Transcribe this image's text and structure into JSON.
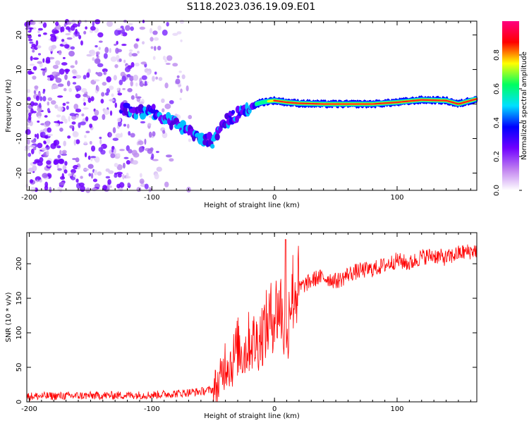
{
  "title": "S118.2023.036.19.09.E01",
  "chart_data": [
    {
      "type": "heatmap",
      "title": "",
      "xlabel": "Height of straight line (km)",
      "ylabel": "Frequency (Hz)",
      "xlim": [
        -202,
        165
      ],
      "ylim": [
        -25,
        24
      ],
      "xticks": [
        -200,
        -100,
        0,
        100
      ],
      "yticks": [
        -20,
        -10,
        0,
        10,
        20
      ],
      "colorbar": {
        "label": "Normalized spectral amplitude",
        "range": [
          0,
          1
        ],
        "ticks": [
          "0.0",
          "0.2",
          "0.4",
          "0.6",
          "0.8"
        ],
        "colors": [
          "#ffffff",
          "#c080f0",
          "#7000ff",
          "#0000ff",
          "#00e0ff",
          "#00ff60",
          "#ffff00",
          "#ff0000",
          "#ff0080"
        ]
      },
      "ridge": {
        "x": [
          -125,
          -110,
          -100,
          -90,
          -80,
          -70,
          -60,
          -50,
          -45,
          -40,
          -35,
          -30,
          -25,
          -20,
          -15,
          -10,
          -5,
          0,
          10,
          20,
          40,
          60,
          80,
          100,
          120,
          140,
          150,
          165
        ],
        "freq": [
          -1.5,
          -2.5,
          -2.0,
          -4.0,
          -6.0,
          -8.0,
          -10.0,
          -11.0,
          -7.0,
          -5.0,
          -4.0,
          -3.0,
          -2.0,
          -1.0,
          0.0,
          0.5,
          0.8,
          1.0,
          0.5,
          0.2,
          0.0,
          0.0,
          0.0,
          0.5,
          1.2,
          1.0,
          0.0,
          1.5
        ]
      },
      "noise_region": {
        "x_from": -202,
        "x_to": -55,
        "freq_range": [
          -25,
          24
        ]
      }
    },
    {
      "type": "line",
      "title": "",
      "xlabel": "Height of straight line (km)",
      "ylabel": "SNR (10 * v/v)",
      "xlim": [
        -202,
        165
      ],
      "ylim": [
        0,
        245
      ],
      "xticks": [
        -200,
        -100,
        0,
        100
      ],
      "yticks": [
        0,
        50,
        100,
        150,
        200
      ],
      "color": "#ff0000",
      "series": [
        {
          "name": "SNR",
          "x": [
            -202,
            -150,
            -100,
            -80,
            -60,
            -50,
            -45,
            -40,
            -35,
            -30,
            -25,
            -20,
            -15,
            -10,
            -5,
            0,
            5,
            8,
            10,
            12,
            15,
            20,
            25,
            30,
            35,
            40,
            45,
            50,
            55,
            60,
            70,
            80,
            90,
            100,
            110,
            120,
            130,
            140,
            150,
            160,
            165
          ],
          "values": [
            8,
            9,
            10,
            12,
            15,
            18,
            25,
            60,
            55,
            80,
            70,
            90,
            85,
            100,
            115,
            130,
            140,
            100,
            60,
            150,
            160,
            165,
            170,
            175,
            180,
            180,
            178,
            175,
            178,
            185,
            190,
            192,
            198,
            205,
            200,
            210,
            212,
            208,
            215,
            218,
            220
          ]
        }
      ],
      "annotations": [
        {
          "x": 9,
          "y": 235,
          "text": ""
        }
      ]
    }
  ]
}
